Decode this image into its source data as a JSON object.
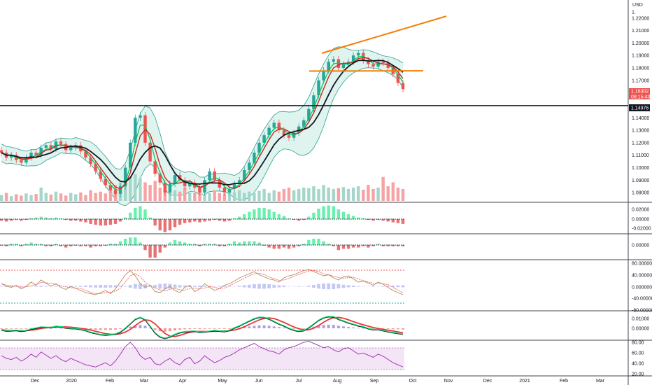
{
  "chart_data": {
    "type": "candlestick",
    "symbol_currency": "USD",
    "colors": {
      "up": "#26a69a",
      "down": "#ef5350",
      "volume_up": "#a5d6c9",
      "volume_down": "#f5a3a3",
      "bollinger": "#2f9e8f",
      "bollinger_fill": "#dff3ef",
      "ma_fast": "#131722",
      "ma_mid": "#c62828",
      "ma_slow": "#00c853",
      "trendline": "#f57c00",
      "support_line": "#131722",
      "last_price_bg": "#ef5350",
      "rsi_line": "#9c27b0",
      "rsi_band": "#f3e5f5"
    },
    "price_axis": {
      "min": 1.075,
      "max": 1.23,
      "ticks": [
        "1.22000",
        "1.21000",
        "1.20000",
        "1.19000",
        "1.18000",
        "1.17000",
        "1.14000",
        "1.13000",
        "1.12000",
        "1.11000",
        "1.10000",
        "1.09000",
        "1.08000"
      ],
      "top_tick": "1."
    },
    "last_price": "1.16302",
    "countdown": "08:15:43",
    "support_price": "1.14976",
    "x_labels": [
      "Dec",
      "2020",
      "Feb",
      "Mar",
      "Apr",
      "May",
      "Jun",
      "Jul",
      "Aug",
      "Sep",
      "Oct",
      "Nov",
      "Dec",
      "2021",
      "Feb",
      "Mar"
    ],
    "close_series": [
      1.112,
      1.108,
      1.11,
      1.106,
      1.104,
      1.108,
      1.112,
      1.11,
      1.116,
      1.118,
      1.115,
      1.121,
      1.119,
      1.114,
      1.116,
      1.118,
      1.113,
      1.108,
      1.103,
      1.097,
      1.091,
      1.086,
      1.082,
      1.079,
      1.085,
      1.1,
      1.12,
      1.14,
      1.142,
      1.12,
      1.105,
      1.095,
      1.088,
      1.08,
      1.087,
      1.094,
      1.09,
      1.085,
      1.088,
      1.084,
      1.08,
      1.09,
      1.097,
      1.09,
      1.084,
      1.08,
      1.083,
      1.087,
      1.09,
      1.098,
      1.104,
      1.112,
      1.12,
      1.126,
      1.132,
      1.136,
      1.13,
      1.126,
      1.124,
      1.128,
      1.133,
      1.138,
      1.147,
      1.158,
      1.17,
      1.178,
      1.185,
      1.187,
      1.18,
      1.183,
      1.185,
      1.19,
      1.192,
      1.186,
      1.183,
      1.181,
      1.185,
      1.184,
      1.18,
      1.175,
      1.168,
      1.163
    ],
    "volume_series": [
      0.22,
      0.3,
      0.18,
      0.25,
      0.2,
      0.28,
      0.22,
      0.26,
      0.5,
      0.3,
      0.24,
      0.35,
      0.28,
      0.2,
      0.3,
      0.25,
      0.32,
      0.22,
      0.4,
      0.3,
      0.35,
      0.28,
      0.5,
      0.6,
      0.7,
      0.8,
      0.9,
      1.0,
      0.85,
      0.7,
      0.6,
      0.75,
      0.5,
      0.45,
      0.6,
      0.4,
      0.35,
      0.5,
      0.3,
      0.3,
      0.35,
      0.25,
      0.3,
      0.4,
      0.3,
      0.28,
      0.35,
      0.32,
      0.4,
      0.3,
      0.35,
      0.3,
      0.38,
      0.45,
      0.3,
      0.4,
      0.35,
      0.45,
      0.5,
      0.4,
      0.45,
      0.5,
      0.48,
      0.55,
      0.45,
      0.6,
      0.5,
      0.45,
      0.48,
      0.52,
      0.45,
      0.5,
      0.55,
      0.42,
      0.6,
      0.45,
      0.5,
      0.9,
      0.55,
      0.7,
      0.5,
      0.45
    ],
    "bollinger_width": [
      0.014,
      0.014,
      0.013,
      0.013,
      0.012,
      0.012,
      0.013,
      0.013,
      0.014,
      0.014,
      0.013,
      0.013,
      0.012,
      0.012,
      0.012,
      0.013,
      0.014,
      0.016,
      0.018,
      0.02,
      0.022,
      0.024,
      0.024,
      0.025,
      0.028,
      0.034,
      0.042,
      0.05,
      0.052,
      0.05,
      0.045,
      0.04,
      0.035,
      0.03,
      0.026,
      0.022,
      0.02,
      0.018,
      0.016,
      0.015,
      0.014,
      0.014,
      0.014,
      0.014,
      0.014,
      0.015,
      0.016,
      0.018,
      0.022,
      0.027,
      0.032,
      0.036,
      0.038,
      0.038,
      0.036,
      0.034,
      0.032,
      0.03,
      0.03,
      0.032,
      0.036,
      0.04,
      0.045,
      0.05,
      0.052,
      0.05,
      0.045,
      0.04,
      0.034,
      0.028,
      0.022,
      0.018,
      0.016,
      0.015,
      0.014,
      0.013,
      0.012,
      0.012,
      0.013,
      0.014,
      0.016,
      0.02
    ],
    "trendline_upper": {
      "from": [
        460,
        1.1918
      ],
      "to": [
        638,
        1.2215
      ]
    },
    "trendline_lower": {
      "from": [
        442,
        1.1775
      ],
      "to": [
        605,
        1.1777
      ]
    },
    "macd_hist": [
      -0.002,
      -0.003,
      -0.002,
      -0.001,
      -0.002,
      -0.001,
      0.001,
      0.002,
      0.003,
      0.002,
      0.001,
      0.002,
      0.001,
      -0.001,
      -0.002,
      -0.002,
      -0.003,
      -0.004,
      -0.006,
      -0.007,
      -0.008,
      -0.008,
      -0.007,
      -0.006,
      -0.003,
      0.002,
      0.008,
      0.014,
      0.016,
      0.012,
      0.002,
      -0.008,
      -0.014,
      -0.016,
      -0.014,
      -0.01,
      -0.007,
      -0.005,
      -0.004,
      -0.003,
      -0.004,
      -0.003,
      -0.002,
      -0.001,
      -0.002,
      -0.003,
      -0.002,
      0.001,
      0.003,
      0.006,
      0.009,
      0.012,
      0.014,
      0.014,
      0.012,
      0.009,
      0.006,
      0.004,
      0.001,
      -0.001,
      -0.002,
      -0.001,
      0.003,
      0.008,
      0.013,
      0.016,
      0.017,
      0.016,
      0.012,
      0.009,
      0.006,
      0.004,
      0.002,
      0.001,
      -0.001,
      -0.002,
      -0.001,
      -0.002,
      -0.003,
      -0.004,
      -0.005,
      -0.006
    ],
    "macd_axis": [
      "0.02000",
      "0.00000",
      "-0.02000"
    ],
    "osc2_axis": [
      "0.00000"
    ],
    "stoch_axis": [
      "80.000000",
      "40.000000",
      "0.000000",
      "-40.000000",
      "-80.000000"
    ],
    "ppo_axis": [
      "0.01000",
      "0.00000"
    ],
    "rsi_axis": [
      "80.00",
      "60.00",
      "40.00",
      "20.00"
    ],
    "rsi_series": [
      55,
      50,
      48,
      52,
      45,
      50,
      58,
      52,
      62,
      56,
      50,
      55,
      48,
      44,
      50,
      46,
      42,
      38,
      36,
      34,
      38,
      42,
      36,
      45,
      58,
      72,
      80,
      70,
      55,
      48,
      52,
      40,
      38,
      45,
      50,
      42,
      38,
      48,
      52,
      40,
      45,
      55,
      48,
      42,
      46,
      52,
      55,
      60,
      66,
      70,
      74,
      78,
      72,
      68,
      64,
      62,
      58,
      66,
      70,
      72,
      76,
      80,
      82,
      78,
      74,
      70,
      72,
      66,
      62,
      68,
      70,
      64,
      58,
      60,
      56,
      52,
      58,
      54,
      48,
      42,
      38,
      34
    ]
  }
}
